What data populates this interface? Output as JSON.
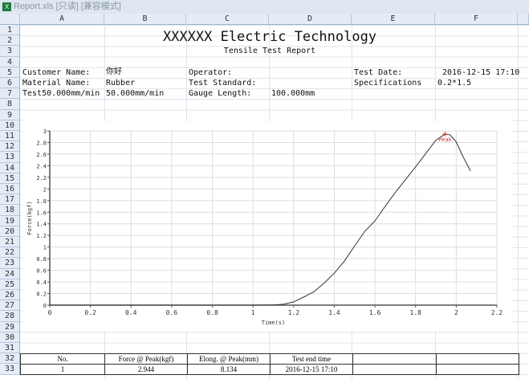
{
  "window": {
    "title": "Report.xls  [只读]  [兼容模式]"
  },
  "columns": [
    "A",
    "B",
    "C",
    "D",
    "E",
    "F"
  ],
  "rows": [
    "1",
    "2",
    "3",
    "4",
    "5",
    "6",
    "7",
    "8",
    "9",
    "10",
    "11",
    "12",
    "13",
    "14",
    "15",
    "16",
    "17",
    "18",
    "19",
    "20",
    "21",
    "22",
    "23",
    "24",
    "25",
    "26",
    "27",
    "28",
    "29",
    "30",
    "31",
    "32",
    "33"
  ],
  "report": {
    "title": "XXXXXX Electric Technology",
    "subtitle": "Tensile Test Report",
    "customer_label": "Customer Name:",
    "customer_value": "你好",
    "operator_label": "Operator:",
    "test_date_label": "Test Date:",
    "test_date_value": "2016-12-15 17:10",
    "material_label": "Material Name:",
    "material_value": "Rubber",
    "standard_label": "Test Standard:",
    "spec_label": "Specifications",
    "spec_value": "0.2*1.5",
    "speed_label": "Test50.000mm/min",
    "speed_value": "50.000mm/min",
    "gauge_label": "Gauge Length:",
    "gauge_value": "100.000mm"
  },
  "results": {
    "headers": [
      "No.",
      "Force @ Peak(kgf)",
      "Elong. @ Peak(mm)",
      "Test end time",
      "",
      ""
    ],
    "row": [
      "1",
      "2.944",
      "8.134",
      "2016-12-15 17:10",
      "",
      ""
    ]
  },
  "chart_data": {
    "type": "line",
    "xlabel": "Time(s)",
    "ylabel": "Force(kgf)",
    "xlim": [
      0,
      2.2
    ],
    "ylim": [
      0,
      3
    ],
    "xticks": [
      "0",
      "0.2",
      "0.4",
      "0.6",
      "0.8",
      "1",
      "1.2",
      "1.4",
      "1.6",
      "1.8",
      "2",
      "2.2"
    ],
    "yticks": [
      "0",
      "0.2",
      "0.4",
      "0.6",
      "0.8",
      "1",
      "1.2",
      "1.4",
      "1.6",
      "1.8",
      "2",
      "2.2",
      "2.4",
      "2.6",
      "2.8",
      "3"
    ],
    "grid": true,
    "series": [
      {
        "color": "#333333",
        "x": [
          0,
          0.5,
          1.0,
          1.1,
          1.15,
          1.2,
          1.25,
          1.3,
          1.35,
          1.4,
          1.45,
          1.5,
          1.55,
          1.6,
          1.65,
          1.7,
          1.75,
          1.8,
          1.85,
          1.9,
          1.945,
          1.97,
          2.0,
          2.03,
          2.07
        ],
        "y": [
          0,
          0,
          0,
          0.003,
          0.015,
          0.055,
          0.14,
          0.23,
          0.38,
          0.55,
          0.76,
          1.02,
          1.27,
          1.45,
          1.7,
          1.94,
          2.16,
          2.38,
          2.61,
          2.84,
          2.944,
          2.93,
          2.81,
          2.58,
          2.31
        ]
      }
    ],
    "annotations": [
      {
        "text": "Peak",
        "x": 1.945,
        "y": 2.944,
        "color": "#d03030"
      }
    ]
  }
}
